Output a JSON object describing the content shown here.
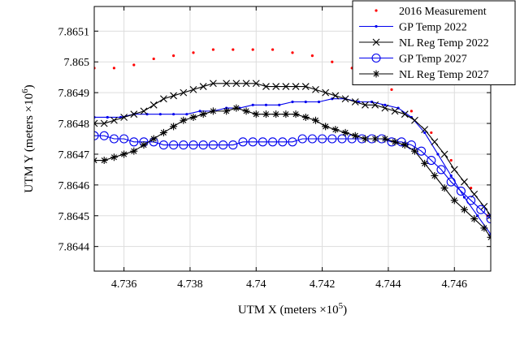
{
  "chart_data": {
    "type": "line",
    "xlabel": "UTM X (meters ×10",
    "xlabel_exp": "5",
    "xlabel_close": ")",
    "ylabel": "UTM Y (meters ×10",
    "ylabel_exp": "6",
    "ylabel_close": ")",
    "xlim": [
      4.7351,
      4.7471
    ],
    "ylim": [
      7.86432,
      7.86518
    ],
    "xticks": [
      4.736,
      4.738,
      4.74,
      4.742,
      4.744,
      4.746
    ],
    "xtick_labels": [
      "4.736",
      "4.738",
      "4.74",
      "4.742",
      "4.744",
      "4.746"
    ],
    "yticks": [
      7.8644,
      7.8645,
      7.8646,
      7.8647,
      7.8648,
      7.8649,
      7.865,
      7.8651
    ],
    "ytick_labels": [
      "7.8644",
      "7.8645",
      "7.8646",
      "7.8647",
      "7.8648",
      "7.8649",
      "7.865",
      "7.8651"
    ],
    "grid": true,
    "legend_position": "top-right",
    "series": [
      {
        "name": "2016 Measurement",
        "color": "#ff0000",
        "style": "dots",
        "x": [
          4.7351,
          4.7357,
          4.7363,
          4.7369,
          4.7375,
          4.7381,
          4.7387,
          4.7393,
          4.7399,
          4.7405,
          4.7411,
          4.7417,
          4.7423,
          4.7429,
          4.7435,
          4.7441,
          4.7447,
          4.7453,
          4.7459,
          4.7465,
          4.747
        ],
        "y": [
          7.86498,
          7.86498,
          7.86499,
          7.86501,
          7.86502,
          7.86503,
          7.86504,
          7.86504,
          7.86504,
          7.86504,
          7.86503,
          7.86502,
          7.865,
          7.86498,
          7.86494,
          7.86491,
          7.86484,
          7.86477,
          7.86468,
          7.86459,
          7.8645
        ]
      },
      {
        "name": "GP Temp 2022",
        "color": "#0000ee",
        "style": "line-dot",
        "x": [
          4.7351,
          4.7355,
          4.7359,
          4.7363,
          4.7367,
          4.7371,
          4.7375,
          4.7379,
          4.7383,
          4.7387,
          4.7391,
          4.7395,
          4.7399,
          4.7403,
          4.7407,
          4.7411,
          4.7415,
          4.7419,
          4.7423,
          4.7427,
          4.7431,
          4.7435,
          4.7439,
          4.7443,
          4.7447,
          4.7451,
          4.7455,
          4.7459,
          4.7463,
          4.7467,
          4.7471
        ],
        "y": [
          7.86482,
          7.86482,
          7.86482,
          7.86483,
          7.86483,
          7.86483,
          7.86483,
          7.86483,
          7.86484,
          7.86484,
          7.86485,
          7.86485,
          7.86486,
          7.86486,
          7.86486,
          7.86487,
          7.86487,
          7.86487,
          7.86488,
          7.86488,
          7.86487,
          7.86487,
          7.86486,
          7.86485,
          7.86482,
          7.86477,
          7.8647,
          7.86463,
          7.86456,
          7.8645,
          7.86444
        ]
      },
      {
        "name": "NL Reg Temp 2022",
        "color": "#000000",
        "style": "line-x",
        "x": [
          4.7351,
          4.7354,
          4.7357,
          4.736,
          4.7363,
          4.7366,
          4.7369,
          4.7372,
          4.7375,
          4.7378,
          4.7381,
          4.7384,
          4.7387,
          4.7391,
          4.7394,
          4.7397,
          4.74,
          4.7403,
          4.7406,
          4.7409,
          4.7412,
          4.7415,
          4.7418,
          4.7421,
          4.7424,
          4.7427,
          4.743,
          4.7433,
          4.7436,
          4.7439,
          4.7442,
          4.7445,
          4.7448,
          4.7451,
          4.7454,
          4.7457,
          4.746,
          4.7463,
          4.7466,
          4.7469,
          4.7471
        ],
        "y": [
          7.8648,
          7.8648,
          7.86481,
          7.86482,
          7.86483,
          7.86484,
          7.86486,
          7.86488,
          7.86489,
          7.8649,
          7.86491,
          7.86492,
          7.86493,
          7.86493,
          7.86493,
          7.86493,
          7.86493,
          7.86492,
          7.86492,
          7.86492,
          7.86492,
          7.86492,
          7.86491,
          7.8649,
          7.86489,
          7.86488,
          7.86487,
          7.86486,
          7.86486,
          7.86485,
          7.86484,
          7.86483,
          7.86481,
          7.86478,
          7.86474,
          7.8647,
          7.86465,
          7.86461,
          7.86457,
          7.86453,
          7.8645
        ]
      },
      {
        "name": "GP Temp 2027",
        "color": "#0000ee",
        "style": "line-circle",
        "x": [
          4.7351,
          4.7354,
          4.7357,
          4.736,
          4.7363,
          4.7366,
          4.7369,
          4.7372,
          4.7375,
          4.7378,
          4.7381,
          4.7384,
          4.7387,
          4.739,
          4.7393,
          4.7396,
          4.7399,
          4.7402,
          4.7405,
          4.7408,
          4.7411,
          4.7414,
          4.7417,
          4.742,
          4.7423,
          4.7426,
          4.7429,
          4.7432,
          4.7435,
          4.7438,
          4.7441,
          4.7444,
          4.7447,
          4.745,
          4.7453,
          4.7456,
          4.7459,
          4.7462,
          4.7465,
          4.7468,
          4.7471
        ],
        "y": [
          7.86476,
          7.86476,
          7.86475,
          7.86475,
          7.86474,
          7.86474,
          7.86474,
          7.86473,
          7.86473,
          7.86473,
          7.86473,
          7.86473,
          7.86473,
          7.86473,
          7.86473,
          7.86474,
          7.86474,
          7.86474,
          7.86474,
          7.86474,
          7.86474,
          7.86475,
          7.86475,
          7.86475,
          7.86475,
          7.86475,
          7.86475,
          7.86475,
          7.86475,
          7.86475,
          7.86474,
          7.86474,
          7.86473,
          7.86471,
          7.86468,
          7.86465,
          7.86461,
          7.86458,
          7.86455,
          7.86452,
          7.86449
        ]
      },
      {
        "name": "NL Reg Temp 2027",
        "color": "#000000",
        "style": "line-star",
        "x": [
          4.7351,
          4.7354,
          4.7357,
          4.736,
          4.7363,
          4.7366,
          4.7369,
          4.7372,
          4.7375,
          4.7378,
          4.7381,
          4.7384,
          4.7387,
          4.7391,
          4.7394,
          4.7397,
          4.74,
          4.7403,
          4.7406,
          4.7409,
          4.7412,
          4.7415,
          4.7418,
          4.7421,
          4.7424,
          4.7427,
          4.743,
          4.7433,
          4.7436,
          4.7439,
          4.7442,
          4.7445,
          4.7448,
          4.7451,
          4.7454,
          4.7457,
          4.746,
          4.7463,
          4.7466,
          4.7469,
          4.7471
        ],
        "y": [
          7.86468,
          7.86468,
          7.86469,
          7.8647,
          7.86471,
          7.86473,
          7.86475,
          7.86477,
          7.86479,
          7.86481,
          7.86482,
          7.86483,
          7.86484,
          7.86484,
          7.86485,
          7.86484,
          7.86483,
          7.86483,
          7.86483,
          7.86483,
          7.86483,
          7.86482,
          7.86481,
          7.86479,
          7.86478,
          7.86477,
          7.86476,
          7.86475,
          7.86475,
          7.86475,
          7.86474,
          7.86473,
          7.86471,
          7.86467,
          7.86463,
          7.86459,
          7.86455,
          7.86452,
          7.86449,
          7.86446,
          7.86443
        ]
      }
    ]
  }
}
